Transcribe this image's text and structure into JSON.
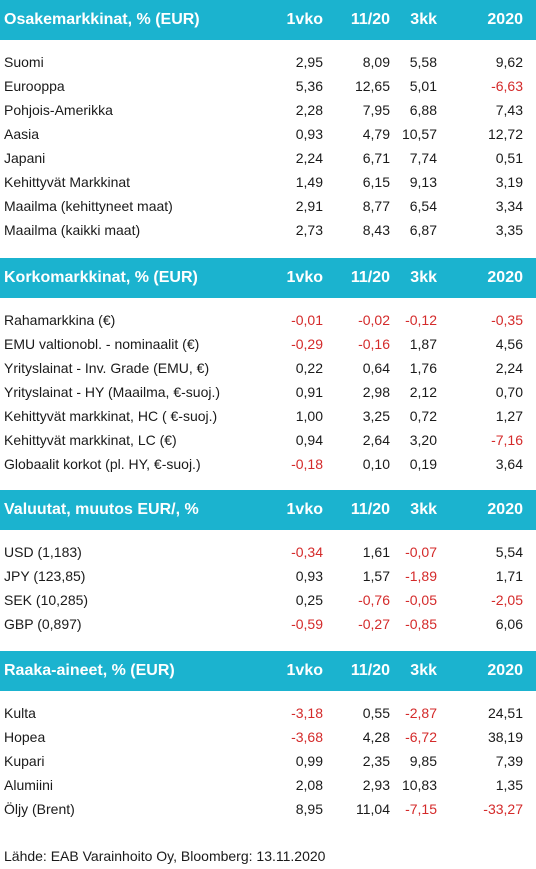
{
  "colors": {
    "header_bg": "#1bb3cf",
    "header_text": "#ffffff",
    "negative": "#d42a2a",
    "text": "#1a1a1a"
  },
  "sections": [
    {
      "title": "Osakemarkkinat, % (EUR)",
      "columns": [
        "1vko",
        "11/20",
        "3kk",
        "2020"
      ],
      "rows": [
        {
          "label": "Suomi",
          "values": [
            "2,95",
            "8,09",
            "5,58",
            "9,62"
          ]
        },
        {
          "label": "Eurooppa",
          "values": [
            "5,36",
            "12,65",
            "5,01",
            "-6,63"
          ]
        },
        {
          "label": "Pohjois-Amerikka",
          "values": [
            "2,28",
            "7,95",
            "6,88",
            "7,43"
          ]
        },
        {
          "label": "Aasia",
          "values": [
            "0,93",
            "4,79",
            "10,57",
            "12,72"
          ]
        },
        {
          "label": "Japani",
          "values": [
            "2,24",
            "6,71",
            "7,74",
            "0,51"
          ]
        },
        {
          "label": "Kehittyvät Markkinat",
          "values": [
            "1,49",
            "6,15",
            "9,13",
            "3,19"
          ]
        },
        {
          "label": "Maailma (kehittyneet maat)",
          "values": [
            "2,91",
            "8,77",
            "6,54",
            "3,34"
          ]
        },
        {
          "label": "Maailma (kaikki maat)",
          "values": [
            "2,73",
            "8,43",
            "6,87",
            "3,35"
          ]
        }
      ]
    },
    {
      "title": "Korkomarkkinat, % (EUR)",
      "columns": [
        "1vko",
        "11/20",
        "3kk",
        "2020"
      ],
      "rows": [
        {
          "label": "Rahamarkkina (€)",
          "values": [
            "-0,01",
            "-0,02",
            "-0,12",
            "-0,35"
          ]
        },
        {
          "label": "EMU valtionobl. - nominaalit (€)",
          "values": [
            "-0,29",
            "-0,16",
            "1,87",
            "4,56"
          ]
        },
        {
          "label": "Yrityslainat - Inv. Grade (EMU, €)",
          "values": [
            "0,22",
            "0,64",
            "1,76",
            "2,24"
          ]
        },
        {
          "label": "Yrityslainat - HY (Maailma, €-suoj.)",
          "values": [
            "0,91",
            "2,98",
            "2,12",
            "0,70"
          ]
        },
        {
          "label": "Kehittyvät markkinat, HC ( €-suoj.)",
          "values": [
            "1,00",
            "3,25",
            "0,72",
            "1,27"
          ]
        },
        {
          "label": "Kehittyvät markkinat, LC (€)",
          "values": [
            "0,94",
            "2,64",
            "3,20",
            "-7,16"
          ]
        },
        {
          "label": "Globaalit korkot (pl. HY,  €-suoj.)",
          "values": [
            "-0,18",
            "0,10",
            "0,19",
            "3,64"
          ]
        }
      ]
    },
    {
      "title": "Valuutat, muutos EUR/, %",
      "columns": [
        "1vko",
        "11/20",
        "3kk",
        "2020"
      ],
      "rows": [
        {
          "label": "USD (1,183)",
          "values": [
            "-0,34",
            "1,61",
            "-0,07",
            "5,54"
          ]
        },
        {
          "label": "JPY (123,85)",
          "values": [
            "0,93",
            "1,57",
            "-1,89",
            "1,71"
          ]
        },
        {
          "label": "SEK (10,285)",
          "values": [
            "0,25",
            "-0,76",
            "-0,05",
            "-2,05"
          ]
        },
        {
          "label": "GBP (0,897)",
          "values": [
            "-0,59",
            "-0,27",
            "-0,85",
            "6,06"
          ]
        }
      ]
    },
    {
      "title": "Raaka-aineet, % (EUR)",
      "columns": [
        "1vko",
        "11/20",
        "3kk",
        "2020"
      ],
      "rows": [
        {
          "label": "Kulta",
          "values": [
            "-3,18",
            "0,55",
            "-2,87",
            "24,51"
          ]
        },
        {
          "label": "Hopea",
          "values": [
            "-3,68",
            "4,28",
            "-6,72",
            "38,19"
          ]
        },
        {
          "label": "Kupari",
          "values": [
            "0,99",
            "2,35",
            "9,85",
            "7,39"
          ]
        },
        {
          "label": "Alumiini",
          "values": [
            "2,08",
            "2,93",
            "10,83",
            "1,35"
          ]
        },
        {
          "label": "Öljy (Brent)",
          "values": [
            "8,95",
            "11,04",
            "-7,15",
            "-33,27"
          ]
        }
      ]
    }
  ],
  "source": "Lähde: EAB Varainhoito Oy, Bloomberg: 13.11.2020"
}
